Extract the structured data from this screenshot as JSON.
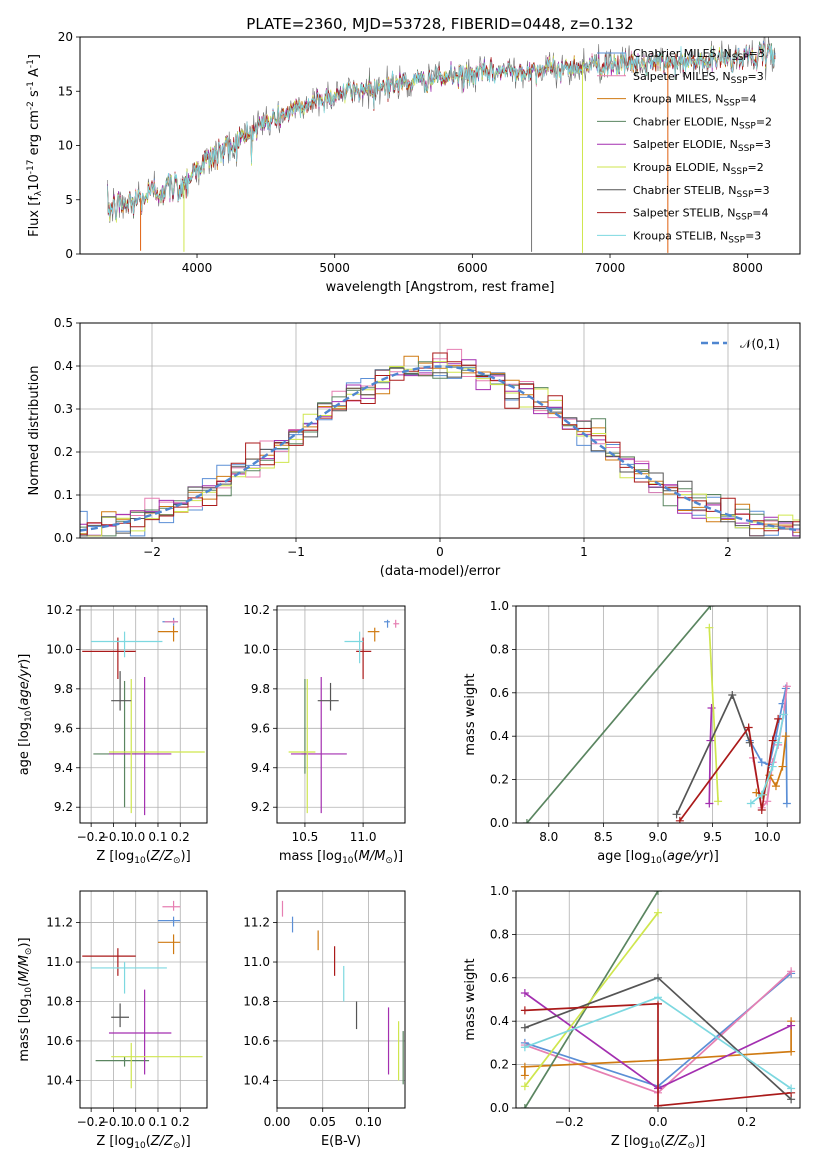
{
  "title": "PLATE=2360, MJD=53728, FIBERID=0448, z=0.132",
  "legend_entries": [
    {
      "label": "Chabrier MILES, N$_{SSP}$=3",
      "color": "#5b8fd6"
    },
    {
      "label": "Salpeter MILES, N$_{SSP}$=3",
      "color": "#e67fb2"
    },
    {
      "label": "Kroupa MILES, N$_{SSP}$=4",
      "color": "#cf7a12"
    },
    {
      "label": "Chabrier ELODIE, N$_{SSP}$=2",
      "color": "#5a8560"
    },
    {
      "label": "Salpeter ELODIE, N$_{SSP}$=3",
      "color": "#a32fb0"
    },
    {
      "label": "Kroupa ELODIE, N$_{SSP}$=2",
      "color": "#cfe64e"
    },
    {
      "label": "Chabrier STELIB, N$_{SSP}$=3",
      "color": "#555555"
    },
    {
      "label": "Salpeter STELIB, N$_{SSP}$=4",
      "color": "#aa1a1a"
    },
    {
      "label": "Kroupa STELIB, N$_{SSP}$=3",
      "color": "#7dd8e0"
    }
  ],
  "chart_data": [
    {
      "id": "spectrum",
      "type": "line",
      "xlabel": "wavelength [Angstrom, rest frame]",
      "ylabel": "Flux [f$_\\lambda$10$^{-17}$ erg cm$^{-2}$ s$^{-1}$ A$^{-1}$]",
      "xlim": [
        3150,
        8380
      ],
      "ylim": [
        0,
        20
      ],
      "xticks": [
        4000,
        5000,
        6000,
        7000,
        8000
      ],
      "yticks": [
        0,
        5,
        10,
        15,
        20
      ],
      "continuum": [
        [
          3350,
          4.2
        ],
        [
          3500,
          4.6
        ],
        [
          3700,
          5.8
        ],
        [
          3900,
          6.4
        ],
        [
          4000,
          8.0
        ],
        [
          4150,
          9.3
        ],
        [
          4300,
          10.4
        ],
        [
          4500,
          12.1
        ],
        [
          4700,
          13.2
        ],
        [
          4900,
          14.3
        ],
        [
          5100,
          15.0
        ],
        [
          5300,
          15.4
        ],
        [
          5500,
          15.8
        ],
        [
          5700,
          16.1
        ],
        [
          5900,
          16.4
        ],
        [
          6100,
          16.7
        ],
        [
          6300,
          16.9
        ],
        [
          6500,
          17.0
        ],
        [
          6700,
          17.2
        ],
        [
          6900,
          17.4
        ],
        [
          7100,
          17.5
        ],
        [
          7300,
          17.6
        ],
        [
          7500,
          17.7
        ],
        [
          7700,
          17.8
        ],
        [
          7900,
          18.1
        ],
        [
          8100,
          18.3
        ],
        [
          8200,
          18.3
        ]
      ],
      "drops": [
        [
          3590,
          0.3
        ],
        [
          3905,
          0.2
        ],
        [
          6430,
          0.2
        ],
        [
          6800,
          0.1
        ],
        [
          7420,
          0.1
        ]
      ],
      "grid": false
    },
    {
      "id": "residual_hist",
      "type": "line",
      "xlabel": "(data-model)/error",
      "ylabel": "Normed distribution",
      "xlim": [
        -2.5,
        2.5
      ],
      "ylim": [
        0,
        0.5
      ],
      "xticks": [
        -2,
        -1,
        0,
        1,
        2
      ],
      "yticks": [
        0.0,
        0.1,
        0.2,
        0.3,
        0.4,
        0.5
      ],
      "reference_label": "$\\mathcal{N}(0,1)$",
      "bin_width": 0.1,
      "grid": true,
      "legend_position": "top-right"
    },
    {
      "id": "Z_vs_age",
      "type": "scatter",
      "xlabel": "Z [log$_{10}$($Z/Z_\\odot$)]",
      "ylabel": "age  [log$_{10}$($age/yr$)]",
      "xlim": [
        -0.25,
        0.32
      ],
      "ylim": [
        9.12,
        10.22
      ],
      "xticks": [
        -0.2,
        -0.1,
        0.0,
        0.1,
        0.2
      ],
      "yticks": [
        9.2,
        9.4,
        9.6,
        9.8,
        10.0,
        10.2
      ],
      "grid": true,
      "points": [
        {
          "s": 0,
          "x": 0.17,
          "xe": [
            0.12,
            0.19
          ],
          "y": 10.14,
          "ye": [
            10.12,
            10.16
          ]
        },
        {
          "s": 1,
          "x": 0.17,
          "xe": [
            0.13,
            0.19
          ],
          "y": 10.14,
          "ye": [
            10.13,
            10.15
          ]
        },
        {
          "s": 2,
          "x": 0.17,
          "xe": [
            0.1,
            0.19
          ],
          "y": 10.09,
          "ye": [
            10.04,
            10.12
          ]
        },
        {
          "s": 3,
          "x": -0.05,
          "xe": [
            -0.19,
            0.06
          ],
          "y": 9.47,
          "ye": [
            9.2,
            9.84
          ]
        },
        {
          "s": 4,
          "x": 0.04,
          "xe": [
            -0.12,
            0.16
          ],
          "y": 9.47,
          "ye": [
            9.16,
            9.86
          ]
        },
        {
          "s": 5,
          "x": -0.02,
          "xe": [
            -0.12,
            0.31
          ],
          "y": 9.48,
          "ye": [
            9.17,
            9.85
          ]
        },
        {
          "s": 6,
          "x": -0.07,
          "xe": [
            -0.11,
            -0.02
          ],
          "y": 9.74,
          "ye": [
            9.69,
            9.89
          ]
        },
        {
          "s": 7,
          "x": -0.08,
          "xe": [
            -0.24,
            0.0
          ],
          "y": 9.99,
          "ye": [
            9.85,
            10.06
          ]
        },
        {
          "s": 8,
          "x": -0.05,
          "xe": [
            -0.2,
            0.12
          ],
          "y": 10.04,
          "ye": [
            9.96,
            10.09
          ]
        }
      ]
    },
    {
      "id": "mass_vs_age",
      "type": "scatter",
      "xlabel": "mass [log$_{10}$($M/M_\\odot$)]",
      "ylabel": "",
      "xlim": [
        10.26,
        11.36
      ],
      "ylim": [
        9.12,
        10.22
      ],
      "xticks": [
        10.5,
        11.0
      ],
      "yticks": [
        9.2,
        9.4,
        9.6,
        9.8,
        10.0,
        10.2
      ],
      "grid": true,
      "points": [
        {
          "s": 0,
          "x": 11.21,
          "xe": [
            11.18,
            11.23
          ],
          "y": 10.14,
          "ye": [
            10.11,
            10.15
          ]
        },
        {
          "s": 1,
          "x": 11.28,
          "xe": [
            11.26,
            11.31
          ],
          "y": 10.13,
          "ye": [
            10.11,
            10.15
          ]
        },
        {
          "s": 2,
          "x": 11.1,
          "xe": [
            11.04,
            11.14
          ],
          "y": 10.09,
          "ye": [
            10.04,
            10.11
          ]
        },
        {
          "s": 3,
          "x": 10.5,
          "xe": [
            10.47,
            10.52
          ],
          "y": 9.47,
          "ye": [
            9.37,
            9.85
          ]
        },
        {
          "s": 4,
          "x": 10.64,
          "xe": [
            10.38,
            10.86
          ],
          "y": 9.47,
          "ye": [
            9.17,
            9.86
          ]
        },
        {
          "s": 5,
          "x": 10.52,
          "xe": [
            10.36,
            10.59
          ],
          "y": 9.48,
          "ye": [
            9.17,
            9.85
          ]
        },
        {
          "s": 6,
          "x": 10.72,
          "xe": [
            10.61,
            10.79
          ],
          "y": 9.74,
          "ye": [
            9.69,
            9.83
          ]
        },
        {
          "s": 7,
          "x": 11.0,
          "xe": [
            10.94,
            11.07
          ],
          "y": 9.99,
          "ye": [
            9.85,
            10.06
          ]
        },
        {
          "s": 8,
          "x": 10.97,
          "xe": [
            10.84,
            11.0
          ],
          "y": 10.04,
          "ye": [
            9.93,
            10.09
          ]
        }
      ]
    },
    {
      "id": "age_vs_massweight",
      "type": "line",
      "xlabel": "age  [log$_{10}$($age/yr$)]",
      "ylabel": "mass weight",
      "xlim": [
        7.7,
        10.3
      ],
      "ylim": [
        0,
        1
      ],
      "xticks": [
        8.0,
        8.5,
        9.0,
        9.5,
        10.0
      ],
      "yticks": [
        0.0,
        0.2,
        0.4,
        0.6,
        0.8,
        1.0
      ],
      "grid": true,
      "series": [
        {
          "s": 0,
          "x": [
            9.84,
            9.95,
            10.02,
            10.08,
            10.14,
            10.17,
            10.18
          ],
          "y": [
            0.38,
            0.28,
            0.27,
            0.4,
            0.55,
            0.62,
            0.09
          ]
        },
        {
          "s": 1,
          "x": [
            9.87,
            9.95,
            10.0,
            10.05,
            10.1,
            10.15,
            10.18
          ],
          "y": [
            0.3,
            0.07,
            0.1,
            0.28,
            0.36,
            0.5,
            0.63
          ]
        },
        {
          "s": 2,
          "x": [
            9.9,
            9.96,
            10.02,
            10.08,
            10.14,
            10.17
          ],
          "y": [
            0.14,
            0.13,
            0.22,
            0.17,
            0.26,
            0.4
          ]
        },
        {
          "s": 3,
          "x": [
            7.8,
            9.48
          ],
          "y": [
            0.0,
            1.0
          ]
        },
        {
          "s": 4,
          "x": [
            9.47,
            9.48,
            9.49
          ],
          "y": [
            0.09,
            0.38,
            0.53
          ]
        },
        {
          "s": 5,
          "x": [
            9.47,
            9.55
          ],
          "y": [
            0.9,
            0.1
          ]
        },
        {
          "s": 6,
          "x": [
            9.17,
            9.68,
            9.84
          ],
          "y": [
            0.04,
            0.59,
            0.37
          ]
        },
        {
          "s": 7,
          "x": [
            9.2,
            9.83,
            9.95,
            10.05,
            10.1
          ],
          "y": [
            0.01,
            0.44,
            0.06,
            0.38,
            0.48
          ]
        },
        {
          "s": 8,
          "x": [
            9.85,
            9.95,
            10.05,
            10.1,
            10.15
          ],
          "y": [
            0.09,
            0.13,
            0.26,
            0.37,
            0.5
          ]
        }
      ]
    },
    {
      "id": "Z_vs_mass",
      "type": "scatter",
      "xlabel": "Z [log$_{10}$($Z/Z_\\odot$)]",
      "ylabel": "mass [log$_{10}$($M/M_\\odot$)]",
      "xlim": [
        -0.25,
        0.32
      ],
      "ylim": [
        10.26,
        11.36
      ],
      "xticks": [
        -0.2,
        -0.1,
        0.0,
        0.1,
        0.2
      ],
      "yticks": [
        10.4,
        10.6,
        10.8,
        11.0,
        11.2
      ],
      "grid": true,
      "points": [
        {
          "s": 0,
          "x": 0.17,
          "xe": [
            0.1,
            0.2
          ],
          "y": 11.21,
          "ye": [
            11.18,
            11.23
          ]
        },
        {
          "s": 1,
          "x": 0.17,
          "xe": [
            0.12,
            0.2
          ],
          "y": 11.28,
          "ye": [
            11.26,
            11.31
          ]
        },
        {
          "s": 2,
          "x": 0.17,
          "xe": [
            0.1,
            0.2
          ],
          "y": 11.1,
          "ye": [
            11.04,
            11.14
          ]
        },
        {
          "s": 3,
          "x": -0.05,
          "xe": [
            -0.18,
            0.06
          ],
          "y": 10.5,
          "ye": [
            10.47,
            10.52
          ]
        },
        {
          "s": 4,
          "x": 0.04,
          "xe": [
            -0.12,
            0.16
          ],
          "y": 10.64,
          "ye": [
            10.43,
            10.86
          ]
        },
        {
          "s": 5,
          "x": -0.02,
          "xe": [
            -0.11,
            0.3
          ],
          "y": 10.52,
          "ye": [
            10.36,
            10.59
          ]
        },
        {
          "s": 6,
          "x": -0.07,
          "xe": [
            -0.11,
            -0.03
          ],
          "y": 10.72,
          "ye": [
            10.67,
            10.79
          ]
        },
        {
          "s": 7,
          "x": -0.08,
          "xe": [
            -0.24,
            0.0
          ],
          "y": 11.03,
          "ye": [
            10.93,
            11.07
          ]
        },
        {
          "s": 8,
          "x": -0.05,
          "xe": [
            -0.2,
            0.14
          ],
          "y": 10.97,
          "ye": [
            10.84,
            11.0
          ]
        }
      ]
    },
    {
      "id": "ebv_vs_mass",
      "type": "scatter",
      "xlabel": "E(B-V)",
      "ylabel": "",
      "xlim": [
        0.0,
        0.14
      ],
      "ylim": [
        10.26,
        11.36
      ],
      "xticks": [
        0.0,
        0.05,
        0.1
      ],
      "yticks": [
        10.4,
        10.6,
        10.8,
        11.0,
        11.2
      ],
      "grid": true,
      "points": [
        {
          "s": 1,
          "x": 0.006,
          "y": 11.27,
          "ye": [
            11.23,
            11.31
          ]
        },
        {
          "s": 0,
          "x": 0.017,
          "y": 11.19,
          "ye": [
            11.15,
            11.23
          ]
        },
        {
          "s": 2,
          "x": 0.045,
          "y": 11.11,
          "ye": [
            11.06,
            11.16
          ]
        },
        {
          "s": 7,
          "x": 0.063,
          "y": 11.0,
          "ye": [
            10.93,
            11.08
          ]
        },
        {
          "s": 8,
          "x": 0.073,
          "y": 10.89,
          "ye": [
            10.8,
            10.98
          ]
        },
        {
          "s": 6,
          "x": 0.087,
          "y": 10.72,
          "ye": [
            10.66,
            10.8
          ]
        },
        {
          "s": 4,
          "x": 0.122,
          "y": 10.6,
          "ye": [
            10.43,
            10.77
          ]
        },
        {
          "s": 5,
          "x": 0.133,
          "y": 10.55,
          "ye": [
            10.4,
            10.7
          ]
        },
        {
          "s": 3,
          "x": 0.138,
          "y": 10.52,
          "ye": [
            10.38,
            10.65
          ]
        }
      ]
    },
    {
      "id": "Z_vs_massweight",
      "type": "line",
      "xlabel": "Z [log$_{10}$($Z/Z_\\odot$)]",
      "ylabel": "mass weight",
      "xlim": [
        -0.32,
        0.32
      ],
      "ylim": [
        0,
        1
      ],
      "xticks": [
        -0.2,
        0.0,
        0.2
      ],
      "yticks": [
        0.0,
        0.2,
        0.4,
        0.6,
        0.8,
        1.0
      ],
      "grid": true,
      "series": [
        {
          "s": 0,
          "x": [
            -0.3,
            0.0,
            0.3
          ],
          "y": [
            0.3,
            0.1,
            0.62
          ]
        },
        {
          "s": 1,
          "x": [
            -0.3,
            0.0,
            0.3
          ],
          "y": [
            0.29,
            0.07,
            0.63
          ]
        },
        {
          "s": 2,
          "x": [
            -0.3,
            -0.3,
            0.0,
            0.3,
            0.3
          ],
          "y": [
            0.15,
            0.19,
            0.22,
            0.26,
            0.4
          ]
        },
        {
          "s": 3,
          "x": [
            -0.3,
            0.0
          ],
          "y": [
            0.0,
            1.0
          ]
        },
        {
          "s": 4,
          "x": [
            -0.3,
            0.0,
            0.3
          ],
          "y": [
            0.53,
            0.09,
            0.38
          ]
        },
        {
          "s": 5,
          "x": [
            -0.3,
            0.0
          ],
          "y": [
            0.1,
            0.9
          ]
        },
        {
          "s": 6,
          "x": [
            -0.3,
            0.0,
            0.3
          ],
          "y": [
            0.37,
            0.6,
            0.04
          ]
        },
        {
          "s": 7,
          "x": [
            -0.3,
            0.0,
            0.0,
            0.3
          ],
          "y": [
            0.45,
            0.48,
            0.01,
            0.07
          ]
        },
        {
          "s": 8,
          "x": [
            -0.3,
            0.0,
            0.3
          ],
          "y": [
            0.28,
            0.51,
            0.09
          ]
        }
      ]
    }
  ]
}
